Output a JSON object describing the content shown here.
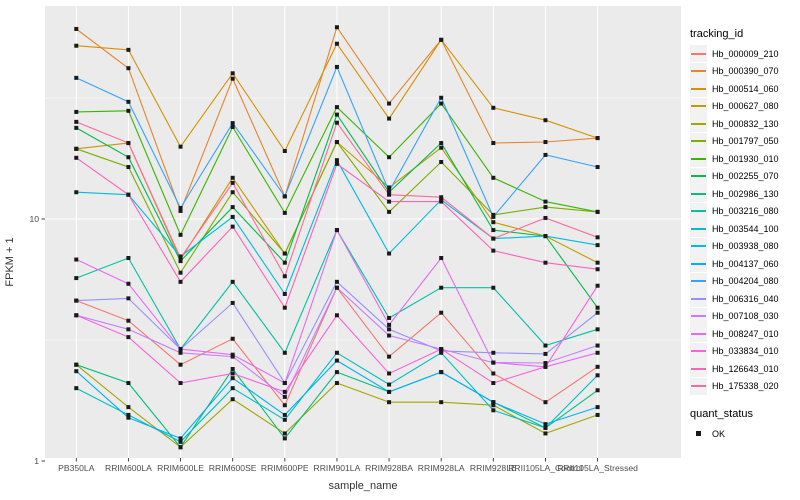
{
  "chart": {
    "chart_data": {
      "type": "line",
      "title": "",
      "xlabel": "sample_name",
      "ylabel": "FPKM + 1",
      "yscale": "log10",
      "ylim": [
        1.0,
        75
      ],
      "grid": true,
      "legend_position": "right",
      "yticks": [
        {
          "value": 1,
          "label": "1"
        },
        {
          "value": 10,
          "label": "10"
        }
      ],
      "minor_gridlines": [
        3.162,
        31.62
      ],
      "categories": [
        "PB350LA",
        "RRIM600LA",
        "RRIM600LE",
        "RRIM600SE",
        "RRIM600PE",
        "RRIM901LA",
        "RRIM928BA",
        "RRIM928LA",
        "RRIM928LE",
        "RRII105LA_Control",
        "RRII105LA_Stressed"
      ],
      "point_shape": "filled-square",
      "point_color": "#1a1a1a",
      "series": [
        {
          "name": "Hb_000009_210",
          "color": "#F8766D",
          "values": [
            4.6,
            3.8,
            2.5,
            3.2,
            1.7,
            5.2,
            2.7,
            4.1,
            2.3,
            1.75,
            2.45
          ]
        },
        {
          "name": "Hb_000390_070",
          "color": "#E9842C",
          "values": [
            61,
            42,
            10.8,
            38,
            12.4,
            62,
            30,
            55,
            20.6,
            20.8,
            21.6
          ]
        },
        {
          "name": "Hb_000514_060",
          "color": "#D69100",
          "values": [
            52,
            50,
            19.9,
            40,
            19.1,
            53,
            26,
            55,
            28.8,
            25.6,
            21.6
          ]
        },
        {
          "name": "Hb_000627_080",
          "color": "#C49A00",
          "values": [
            19.5,
            20.6,
            6.8,
            14.8,
            7.2,
            20.8,
            13.5,
            19.7,
            9.7,
            8.5,
            6.6
          ]
        },
        {
          "name": "Hb_000832_130",
          "color": "#A3A500",
          "values": [
            2.5,
            1.67,
            1.14,
            1.8,
            1.3,
            2.1,
            1.75,
            1.75,
            1.7,
            1.3,
            1.55
          ]
        },
        {
          "name": "Hb_001797_050",
          "color": "#7CAE00",
          "values": [
            19.5,
            16.4,
            6.0,
            12.9,
            7.2,
            20.8,
            10.7,
            17.2,
            10.4,
            11.2,
            10.7
          ]
        },
        {
          "name": "Hb_001930_010",
          "color": "#39B600",
          "values": [
            27.7,
            28,
            8.6,
            24,
            10.6,
            29,
            18,
            30,
            14.8,
            11.8,
            10.7
          ]
        },
        {
          "name": "Hb_002255_070",
          "color": "#00BB4E",
          "values": [
            23.8,
            18,
            6.7,
            11.2,
            6.6,
            27,
            12.9,
            20.6,
            9.0,
            8.5,
            4.3
          ]
        },
        {
          "name": "Hb_002986_130",
          "color": "#00BF7D",
          "values": [
            2.5,
            2.1,
            1.14,
            2.4,
            1.24,
            2.33,
            1.93,
            2.33,
            1.75,
            1.37,
            1.96
          ]
        },
        {
          "name": "Hb_003216_080",
          "color": "#00C1A3",
          "values": [
            5.7,
            6.9,
            2.9,
            5.5,
            2.8,
            9.0,
            3.9,
            5.2,
            5.2,
            3.0,
            3.5
          ]
        },
        {
          "name": "Hb_003544_100",
          "color": "#00BFC4",
          "values": [
            2.0,
            1.55,
            1.2,
            2.0,
            1.48,
            2.8,
            2.07,
            2.8,
            1.62,
            1.37,
            2.26
          ]
        },
        {
          "name": "Hb_003938_080",
          "color": "#00BAE0",
          "values": [
            12.9,
            12.6,
            7.0,
            10.2,
            4.9,
            17.5,
            7.2,
            12.0,
            8.3,
            8.5,
            7.8
          ]
        },
        {
          "name": "Hb_004137_060",
          "color": "#00B0F6",
          "values": [
            2.35,
            1.51,
            1.24,
            2.2,
            1.55,
            2.6,
            1.93,
            2.33,
            1.75,
            1.42,
            1.67
          ]
        },
        {
          "name": "Hb_004204_080",
          "color": "#35A2FF",
          "values": [
            38.3,
            30.5,
            11.1,
            24.9,
            12.4,
            42.5,
            13.0,
            31.7,
            10.2,
            18.4,
            16.4
          ]
        },
        {
          "name": "Hb_006316_040",
          "color": "#9590FF",
          "values": [
            4.6,
            4.7,
            2.9,
            4.5,
            2.1,
            5.5,
            3.5,
            2.85,
            2.8,
            2.77,
            4.1
          ]
        },
        {
          "name": "Hb_007108_030",
          "color": "#C77CFF",
          "values": [
            4.0,
            3.5,
            2.8,
            2.7,
            1.84,
            5.2,
            3.3,
            2.9,
            2.55,
            2.54,
            3.0
          ]
        },
        {
          "name": "Hb_008247_010",
          "color": "#E76BF3",
          "values": [
            6.8,
            5.4,
            2.9,
            2.75,
            2.1,
            9.0,
            3.65,
            6.9,
            2.55,
            2.45,
            2.8
          ]
        },
        {
          "name": "Hb_033834_010",
          "color": "#FA62DB",
          "values": [
            4.0,
            3.25,
            2.1,
            2.3,
            1.93,
            4.0,
            2.3,
            2.9,
            2.1,
            2.45,
            5.3
          ]
        },
        {
          "name": "Hb_126643_010",
          "color": "#FF62BC",
          "values": [
            17.9,
            12.6,
            5.5,
            9.3,
            4.3,
            16.9,
            11.8,
            11.8,
            7.4,
            6.6,
            6.2
          ]
        },
        {
          "name": "Hb_175338_020",
          "color": "#FF6A98",
          "values": [
            25.2,
            20.6,
            6.9,
            14.1,
            5.8,
            25,
            12.6,
            12.3,
            8.3,
            10.1,
            8.4
          ]
        }
      ]
    },
    "legend": {
      "tracking_title": "tracking_id",
      "quant_title": "quant_status",
      "quant_items": [
        {
          "label": "OK"
        }
      ]
    },
    "colors": {
      "panel_bg": "#EBEBEB",
      "grid": "#FFFFFF",
      "tick_text": "#4D4D4D",
      "axis_title": "#333333",
      "marker": "#1a1a1a",
      "legend_key_bg": "#F2F2F2"
    }
  }
}
